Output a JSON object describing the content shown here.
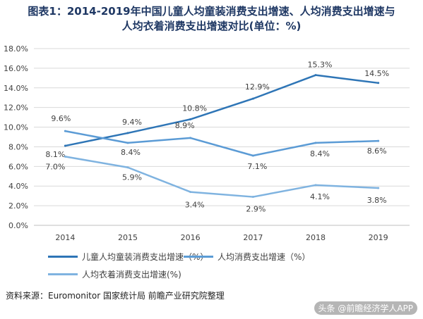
{
  "title_line1": "图表1：2014-2019年中国儿童人均童装消费支出增速、人均消费支出增速与",
  "title_line2": "人均衣着消费支出增速对比(单位：%)",
  "source": "资料来源：Euromonitor 国家统计局 前瞻产业研究院整理",
  "watermark": "头条 @前瞻经济学人APP",
  "chart_data": {
    "type": "line",
    "x": [
      "2014",
      "2015",
      "2016",
      "2017",
      "2018",
      "2019"
    ],
    "ylim": [
      0,
      18
    ],
    "yticks": [
      "0.0%",
      "2.0%",
      "4.0%",
      "6.0%",
      "8.0%",
      "10.0%",
      "12.0%",
      "14.0%",
      "16.0%",
      "18.0%"
    ],
    "grid": true,
    "legend_position": "bottom",
    "series": [
      {
        "name": "儿童人均童装消费支出增速（%）",
        "values": [
          8.1,
          9.4,
          10.8,
          12.9,
          15.3,
          14.5
        ],
        "labels": [
          "8.1%",
          "9.4%",
          "10.8%",
          "12.9%",
          "15.3%",
          "14.5%"
        ],
        "color": "#2e75b6"
      },
      {
        "name": "人均消费支出增速（%）",
        "values": [
          9.6,
          8.4,
          8.9,
          7.1,
          8.4,
          8.6
        ],
        "labels": [
          "9.6%",
          "8.4%",
          "8.9%",
          "7.1%",
          "8.4%",
          "8.6%"
        ],
        "color": "#5b9bd5"
      },
      {
        "name": "人均衣着消费支出增速(%)",
        "values": [
          7.0,
          5.9,
          3.4,
          2.9,
          4.1,
          3.8
        ],
        "labels": [
          "7.0%",
          "5.9%",
          "3.4%",
          "2.9%",
          "4.1%",
          "3.8%"
        ],
        "color": "#7fb3e0"
      }
    ]
  }
}
